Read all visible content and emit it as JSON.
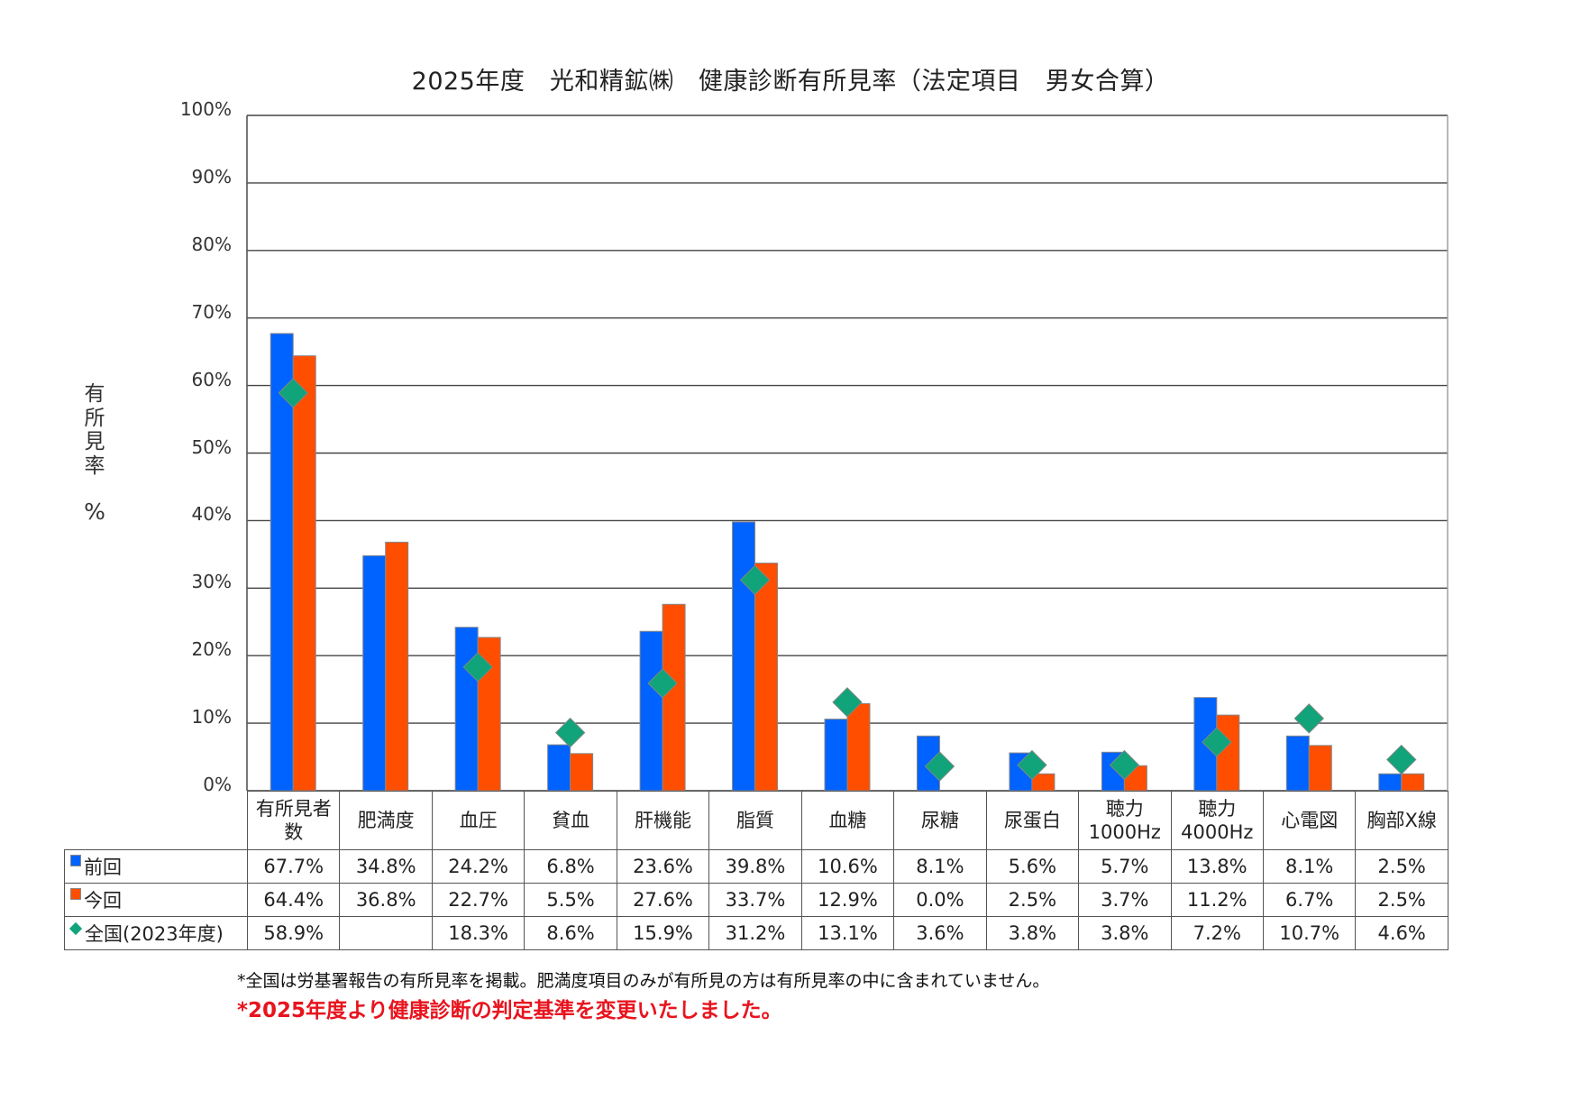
{
  "title": "2025年度　光和精鉱㈱　健康診断有所見率（法定項目　男女合算）",
  "y_axis": {
    "label_chars": [
      "有",
      "所",
      "見",
      "率"
    ],
    "unit": "%",
    "ticks": [
      "100%",
      "90%",
      "80%",
      "70%",
      "60%",
      "50%",
      "40%",
      "30%",
      "20%",
      "10%",
      "0%"
    ]
  },
  "colors": {
    "previous": "#0062FF",
    "current": "#FF4E00",
    "national": "#11A37A",
    "note_red": "#E8141E"
  },
  "table": {
    "row_labels": {
      "previous": "前回",
      "current": "今回",
      "national": "全国(2023年度)"
    },
    "categories": [
      [
        "有所見者",
        "数"
      ],
      [
        "肥満度"
      ],
      [
        "血圧"
      ],
      [
        "貧血"
      ],
      [
        "肝機能"
      ],
      [
        "脂質"
      ],
      [
        "血糖"
      ],
      [
        "尿糖"
      ],
      [
        "尿蛋白"
      ],
      [
        "聴力",
        "1000Hz"
      ],
      [
        "聴力",
        "4000Hz"
      ],
      [
        "心電図"
      ],
      [
        "胸部X線"
      ]
    ],
    "previous": [
      "67.7%",
      "34.8%",
      "24.2%",
      "6.8%",
      "23.6%",
      "39.8%",
      "10.6%",
      "8.1%",
      "5.6%",
      "5.7%",
      "13.8%",
      "8.1%",
      "2.5%"
    ],
    "current": [
      "64.4%",
      "36.8%",
      "22.7%",
      "5.5%",
      "27.6%",
      "33.7%",
      "12.9%",
      "0.0%",
      "2.5%",
      "3.7%",
      "11.2%",
      "6.7%",
      "2.5%"
    ],
    "national": [
      "58.9%",
      "",
      "18.3%",
      "8.6%",
      "15.9%",
      "31.2%",
      "13.1%",
      "3.6%",
      "3.8%",
      "3.8%",
      "7.2%",
      "10.7%",
      "4.6%"
    ]
  },
  "notes": {
    "note1": "*全国は労基署報告の有所見率を掲載。肥満度項目のみが有所見の方は有所見率の中に含まれていません。",
    "note2": "*2025年度より健康診断の判定基準を変更いたしました。"
  },
  "chart_data": {
    "type": "bar",
    "title": "2025年度　光和精鉱㈱　健康診断有所見率（法定項目　男女合算）",
    "xlabel": "",
    "ylabel": "有所見率 %",
    "ylim": [
      0,
      100
    ],
    "yticks": [
      0,
      10,
      20,
      30,
      40,
      50,
      60,
      70,
      80,
      90,
      100
    ],
    "grid": true,
    "legend_position": "table-row-labels",
    "categories": [
      "有所見者数",
      "肥満度",
      "血圧",
      "貧血",
      "肝機能",
      "脂質",
      "血糖",
      "尿糖",
      "尿蛋白",
      "聴力1000Hz",
      "聴力4000Hz",
      "心電図",
      "胸部X線"
    ],
    "series": [
      {
        "name": "前回",
        "kind": "bar",
        "color": "#0062FF",
        "values": [
          67.7,
          34.8,
          24.2,
          6.8,
          23.6,
          39.8,
          10.6,
          8.1,
          5.6,
          5.7,
          13.8,
          8.1,
          2.5
        ]
      },
      {
        "name": "今回",
        "kind": "bar",
        "color": "#FF4E00",
        "values": [
          64.4,
          36.8,
          22.7,
          5.5,
          27.6,
          33.7,
          12.9,
          0.0,
          2.5,
          3.7,
          11.2,
          6.7,
          2.5
        ]
      },
      {
        "name": "全国(2023年度)",
        "kind": "marker-diamond",
        "color": "#11A37A",
        "values": [
          58.9,
          null,
          18.3,
          8.6,
          15.9,
          31.2,
          13.1,
          3.6,
          3.8,
          3.8,
          7.2,
          10.7,
          4.6
        ]
      }
    ]
  }
}
